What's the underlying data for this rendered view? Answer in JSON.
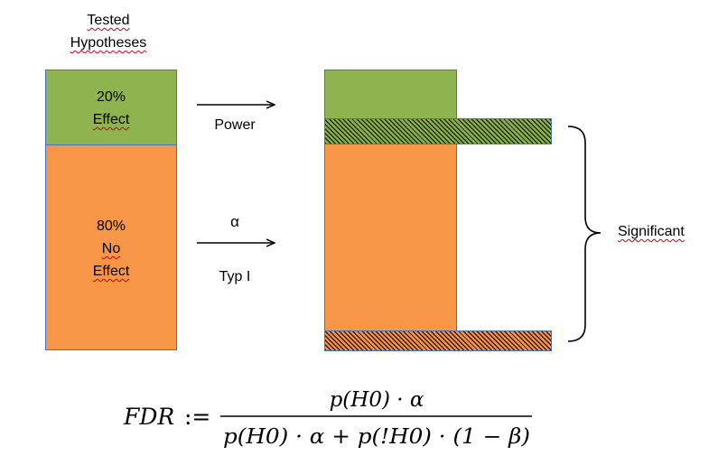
{
  "header": {
    "line1": "Tested",
    "line2": "Hypotheses"
  },
  "left_column": {
    "effect": {
      "percent": "20%",
      "label": "Effect",
      "share": 0.2,
      "color": "#8fb34f"
    },
    "no_effect": {
      "percent": "80%",
      "line1": "No",
      "line2": "Effect",
      "share": 0.8,
      "color": "#f79646"
    }
  },
  "arrows": {
    "power_label": "Power",
    "alpha_symbol": "α",
    "type1_label": "Typ I"
  },
  "bracket": {
    "label": "Significant"
  },
  "formula": {
    "lhs": "FDR",
    "assign": ":=",
    "numerator": "p(H0) · α",
    "denominator": "p(H0) · α + p(!H0) · (1 − β)"
  },
  "colors": {
    "effect": "#8fb34f",
    "no_effect": "#f79646",
    "outline": "#4472c4"
  }
}
